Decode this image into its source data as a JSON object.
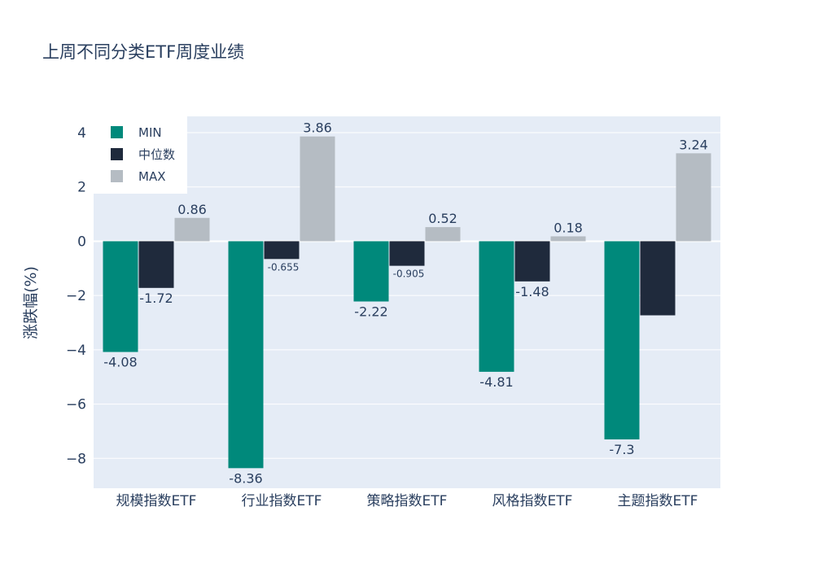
{
  "chart_data": {
    "type": "bar",
    "title": "上周不同分类ETF周度业绩",
    "ylabel": "涨跌幅(%)",
    "xlabel": "",
    "categories": [
      "规模指数ETF",
      "行业指数ETF",
      "策略指数ETF",
      "风格指数ETF",
      "主题指数ETF"
    ],
    "series": [
      {
        "name": "MIN",
        "color": "#00897b",
        "values": [
          -4.08,
          -8.36,
          -2.22,
          -4.81,
          -7.3
        ],
        "labels": [
          "-4.08",
          "-8.36",
          "-2.22",
          "-4.81",
          "-7.3"
        ]
      },
      {
        "name": "中位数",
        "color": "#1f2a3c",
        "values": [
          -1.72,
          -0.655,
          -0.905,
          -1.48,
          -2.73
        ],
        "labels": [
          "-1.72",
          "-0.655",
          "-0.905",
          "-1.48",
          ""
        ]
      },
      {
        "name": "MAX",
        "color": "#b5bcc3",
        "values": [
          0.86,
          3.86,
          0.52,
          0.18,
          3.24
        ],
        "labels": [
          "0.86",
          "3.86",
          "0.52",
          "0.18",
          "3.24"
        ]
      }
    ],
    "ylim": [
      -9.1,
      4.6
    ],
    "yticks": [
      4,
      2,
      0,
      -2,
      -4,
      -6,
      -8
    ],
    "ytick_labels": [
      "4",
      "2",
      "0",
      "−2",
      "−4",
      "−6",
      "−8"
    ],
    "grid": true,
    "legend_position": "top-left",
    "plot_bg": "#e5ecf6"
  }
}
